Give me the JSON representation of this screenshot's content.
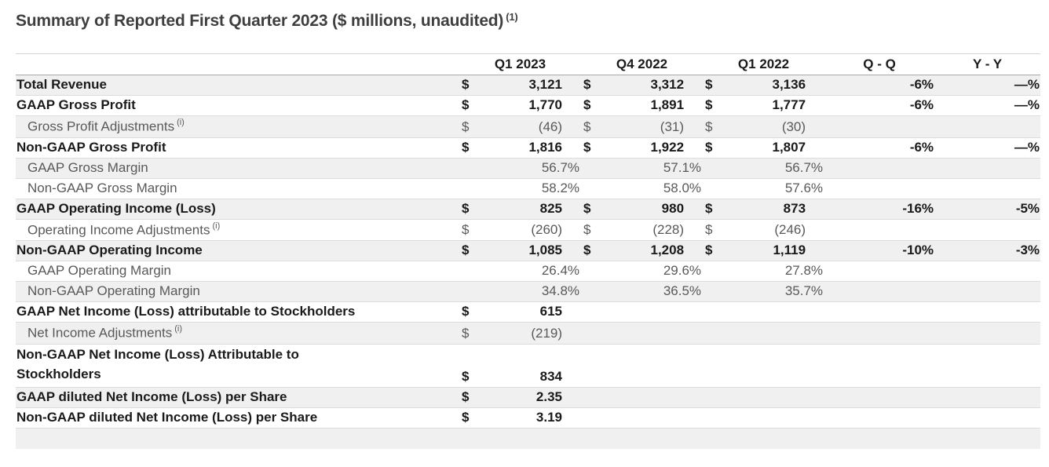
{
  "title": {
    "text": "Summary of Reported First Quarter 2023 ($ millions, unaudited)",
    "superscript": "(1)"
  },
  "table": {
    "headers": {
      "q1_2023": "Q1 2023",
      "q4_2022": "Q4 2022",
      "q1_2022": "Q1 2022",
      "qq": "Q - Q",
      "yy": "Y - Y"
    },
    "rows": [
      {
        "label": "Total Revenue",
        "bold": true,
        "d1": "$",
        "v1": "3,121",
        "d2": "$",
        "v2": "3,312",
        "d3": "$",
        "v3": "3,136",
        "qq": "-6%",
        "yy": "—%"
      },
      {
        "label": "GAAP Gross Profit",
        "bold": true,
        "d1": "$",
        "v1": "1,770",
        "d2": "$",
        "v2": "1,891",
        "d3": "$",
        "v3": "1,777",
        "qq": "-6%",
        "yy": "—%"
      },
      {
        "label": "Gross Profit Adjustments",
        "sup": "(i)",
        "indent": true,
        "d1": "$",
        "v1": "(46)",
        "d2": "$",
        "v2": "(31)",
        "d3": "$",
        "v3": "(30)"
      },
      {
        "label": "Non-GAAP Gross Profit",
        "bold": true,
        "d1": "$",
        "v1": "1,816",
        "d2": "$",
        "v2": "1,922",
        "d3": "$",
        "v3": "1,807",
        "qq": "-6%",
        "yy": "—%"
      },
      {
        "label": "GAAP Gross Margin",
        "indent": true,
        "percent": true,
        "v1": "56.7%",
        "v2": "57.1%",
        "v3": "56.7%"
      },
      {
        "label": "Non-GAAP Gross Margin",
        "indent": true,
        "percent": true,
        "v1": "58.2%",
        "v2": "58.0%",
        "v3": "57.6%"
      },
      {
        "label": "GAAP Operating Income (Loss)",
        "bold": true,
        "d1": "$",
        "v1": "825",
        "d2": "$",
        "v2": "980",
        "d3": "$",
        "v3": "873",
        "qq": "-16%",
        "yy": "-5%"
      },
      {
        "label": "Operating Income Adjustments",
        "sup": "(i)",
        "indent": true,
        "d1": "$",
        "v1": "(260)",
        "d2": "$",
        "v2": "(228)",
        "d3": "$",
        "v3": "(246)"
      },
      {
        "label": "Non-GAAP Operating Income",
        "bold": true,
        "d1": "$",
        "v1": "1,085",
        "d2": "$",
        "v2": "1,208",
        "d3": "$",
        "v3": "1,119",
        "qq": "-10%",
        "yy": "-3%"
      },
      {
        "label": "GAAP Operating Margin",
        "indent": true,
        "percent": true,
        "v1": "26.4%",
        "v2": "29.6%",
        "v3": "27.8%"
      },
      {
        "label": "Non-GAAP Operating Margin",
        "indent": true,
        "percent": true,
        "v1": "34.8%",
        "v2": "36.5%",
        "v3": "35.7%"
      },
      {
        "label": "GAAP Net Income (Loss) attributable to Stockholders",
        "bold": true,
        "d1": "$",
        "v1": "615"
      },
      {
        "label": "Net Income Adjustments",
        "sup": "(i)",
        "indent": true,
        "d1": "$",
        "v1": "(219)"
      },
      {
        "label": "Non-GAAP Net Income (Loss) Attributable to",
        "label2": "Stockholders",
        "bold": true,
        "d1": "$",
        "v1": "834"
      },
      {
        "label": "GAAP diluted Net Income (Loss) per Share",
        "bold": true,
        "d1": "$",
        "v1": "2.35"
      },
      {
        "label": "Non-GAAP diluted Net Income (Loss) per Share",
        "bold": true,
        "d1": "$",
        "v1": "3.19"
      },
      {
        "label": "",
        "spacer": true
      }
    ],
    "colors": {
      "row_stripe": "#f0f0f0",
      "bold_text": "#1a1a1a",
      "plain_text": "#595959",
      "title_text": "#3f3f3f",
      "row_border": "#dcdcdc",
      "header_underline": "#a8a8a8"
    }
  }
}
